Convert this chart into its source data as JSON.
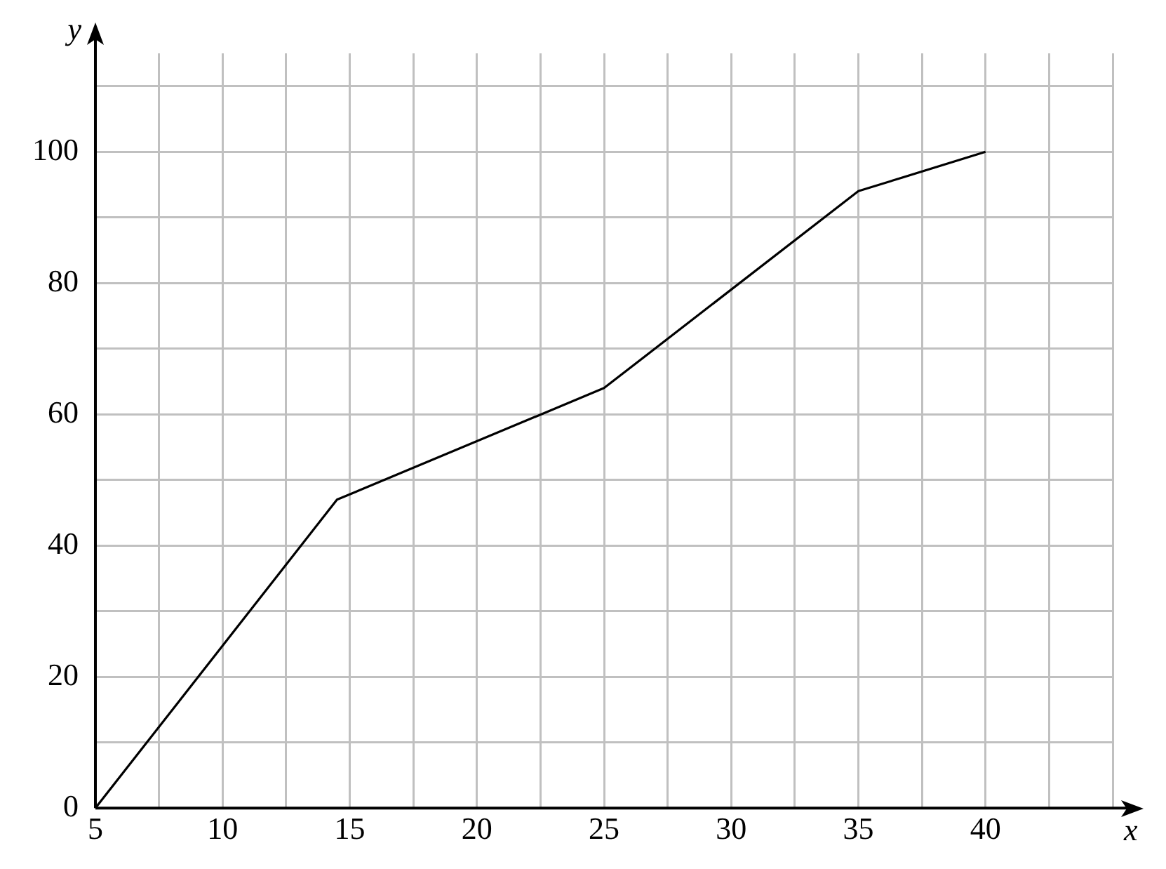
{
  "chart_data": {
    "type": "line",
    "xlabel": "x",
    "ylabel": "y",
    "x": [
      5,
      14.5,
      25,
      35,
      40
    ],
    "series": [
      {
        "color": "#000000",
        "values": [
          0,
          47,
          64,
          94,
          100
        ]
      }
    ],
    "xlim": [
      5,
      45
    ],
    "ylim": [
      0,
      115
    ],
    "xticks": [
      5,
      {
        "value": 7.5,
        "label": null
      },
      10,
      {
        "value": 12.5,
        "label": null
      },
      15,
      {
        "value": 17.5,
        "label": null
      },
      20,
      {
        "value": 22.5,
        "label": null
      },
      25,
      {
        "value": 27.5,
        "label": null
      },
      30,
      {
        "value": 32.5,
        "label": null
      },
      35,
      {
        "value": 37.5,
        "label": null
      },
      40,
      {
        "value": 42.5,
        "label": null
      },
      {
        "value": 45,
        "label": null
      }
    ],
    "yticks": [
      0,
      {
        "value": 10,
        "label": null
      },
      20,
      {
        "value": 30,
        "label": null
      },
      40,
      {
        "value": 50,
        "label": null
      },
      60,
      {
        "value": 70,
        "label": null
      },
      80,
      {
        "value": 90,
        "label": null
      },
      100,
      {
        "value": 110,
        "label": null
      }
    ],
    "grid": true,
    "legend": false,
    "marker": "none",
    "line_style": "solid"
  }
}
